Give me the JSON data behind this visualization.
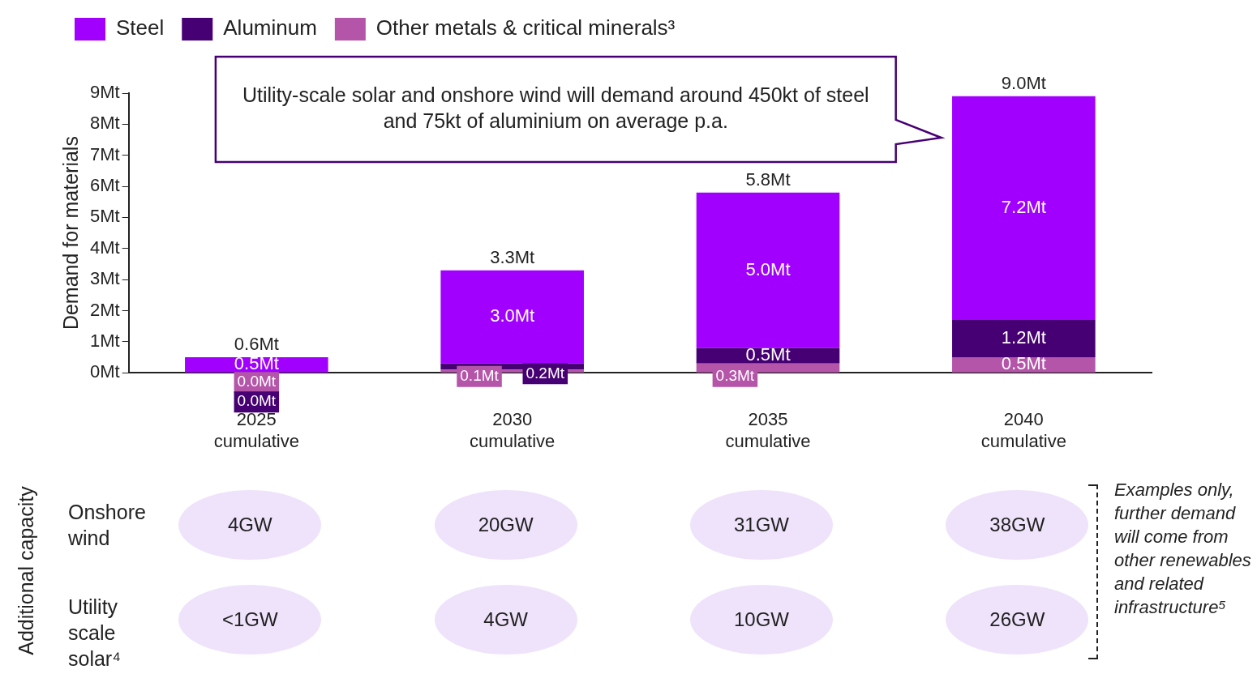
{
  "chart_data": {
    "type": "bar",
    "stacked": true,
    "legend": "top left",
    "grid": false,
    "ylabel": "Demand for materials",
    "categories": [
      "2025 cumulative",
      "2030 cumulative",
      "2035 cumulative",
      "2040 cumulative"
    ],
    "series": [
      {
        "name": "Other metals & critical minerals³",
        "color": "#b455aa",
        "values": [
          0.0,
          0.1,
          0.3,
          0.5
        ],
        "value_labels": [
          "0.0Mt",
          "0.1Mt",
          "0.3Mt",
          "0.5Mt"
        ]
      },
      {
        "name": "Aluminum",
        "color": "#460073",
        "values": [
          0.0,
          0.2,
          0.5,
          1.2
        ],
        "value_labels": [
          "0.0Mt",
          "0.2Mt",
          "0.5Mt",
          "1.2Mt"
        ]
      },
      {
        "name": "Steel",
        "color": "#a100ff",
        "values": [
          0.5,
          3.0,
          5.0,
          7.2
        ],
        "value_labels": [
          "0.5Mt",
          "3.0Mt",
          "5.0Mt",
          "7.2Mt"
        ]
      }
    ],
    "totals": [
      "0.6Mt",
      "3.3Mt",
      "5.8Mt",
      "9.0Mt"
    ],
    "ylim": [
      0,
      9
    ],
    "yticks": [
      {
        "value": 0,
        "label": "0Mt"
      },
      {
        "value": 1,
        "label": "1Mt"
      },
      {
        "value": 2,
        "label": "2Mt"
      },
      {
        "value": 3,
        "label": "3Mt"
      },
      {
        "value": 4,
        "label": "4Mt"
      },
      {
        "value": 5,
        "label": "5Mt"
      },
      {
        "value": 6,
        "label": "6Mt"
      },
      {
        "value": 7,
        "label": "7Mt"
      },
      {
        "value": 8,
        "label": "8Mt"
      },
      {
        "value": 9,
        "label": "9Mt"
      }
    ],
    "annotations": [
      "Utility-scale solar and onshore wind will demand around 450kt of steel and 75kt of aluminium on average p.a.",
      "Additional capacity",
      "Onshore wind",
      "4GW",
      "20GW",
      "31GW",
      "38GW",
      "Utility scale solar⁴",
      "<1GW",
      "4GW",
      "10GW",
      "26GW",
      "Examples only, further demand will come from other renewables and related infrastructure⁵"
    ]
  }
}
